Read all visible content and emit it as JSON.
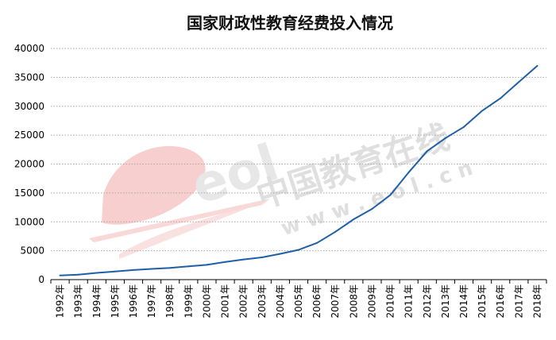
{
  "chart_data": {
    "type": "line",
    "title": "国家财政性教育经费投入情况",
    "xlabel": "",
    "ylabel": "",
    "ylim": [
      0,
      40000
    ],
    "yticks": [
      0,
      5000,
      10000,
      15000,
      20000,
      25000,
      30000,
      35000,
      40000
    ],
    "grid": true,
    "legend": "none",
    "categories": [
      "1992年",
      "1993年",
      "1994年",
      "1995年",
      "1996年",
      "1997年",
      "1998年",
      "1999年",
      "2000年",
      "2001年",
      "2002年",
      "2003年",
      "2004年",
      "2005年",
      "2006年",
      "2007年",
      "2008年",
      "2009年",
      "2010年",
      "2011年",
      "2012年",
      "2013年",
      "2014年",
      "2015年",
      "2016年",
      "2017年",
      "2018年"
    ],
    "series": [
      {
        "values": [
          730,
          870,
          1175,
          1410,
          1670,
          1860,
          2030,
          2290,
          2560,
          3060,
          3490,
          3850,
          4470,
          5160,
          6350,
          8280,
          10450,
          12230,
          14670,
          18590,
          22240,
          24490,
          26420,
          29220,
          31400,
          34210,
          36990
        ],
        "color": "#1f5fa8"
      }
    ]
  },
  "watermark": {
    "text_cn": "中国教育在线",
    "text_url": "w w w . e o l . c n",
    "logo_text": "eol"
  }
}
